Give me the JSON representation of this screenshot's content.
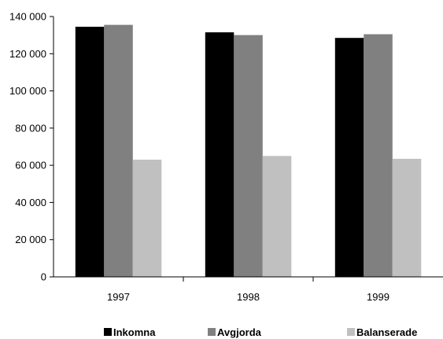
{
  "chart_data": {
    "type": "bar",
    "categories": [
      "1997",
      "1998",
      "1999"
    ],
    "series": [
      {
        "name": "Inkomna",
        "values": [
          134500,
          131500,
          128500
        ],
        "color": "#000000"
      },
      {
        "name": "Avgjorda",
        "values": [
          135500,
          130000,
          130500
        ],
        "color": "#808080"
      },
      {
        "name": "Balanserade",
        "values": [
          63000,
          65000,
          63500
        ],
        "color": "#c0c0c0"
      }
    ],
    "ylim": [
      0,
      140000
    ],
    "yticks": [
      0,
      20000,
      40000,
      60000,
      80000,
      100000,
      120000,
      140000
    ],
    "ytick_labels": [
      "0",
      "20 000",
      "40 000",
      "60 000",
      "80 000",
      "100 000",
      "120 000",
      "140 000"
    ],
    "grid": false,
    "legend": "bottom",
    "title": "",
    "xlabel": "",
    "ylabel": ""
  }
}
